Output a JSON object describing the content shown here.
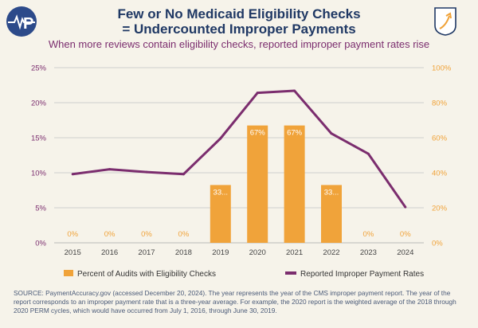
{
  "header": {
    "title_line1": "Few or No Medicaid Eligibility Checks",
    "title_line2": "= Undercounted Improper Payments",
    "subtitle": "When more reviews contain eligibility checks, reported improper payment rates rise"
  },
  "footer": {
    "source": "SOURCE: PaymentAccuracy.gov (accessed December 20, 2024). The year represents the year of the CMS improper payment report. The year of the report corresponds to an improper payment rate that is a three-year average. For example, the 2020 report is the weighted average of the 2018 through 2020 PERM cycles, which would have occurred from July 1, 2016, through June 30, 2019."
  },
  "colors": {
    "title": "#1f3864",
    "subtitle": "#7b2d6e",
    "bar": "#f0a33a",
    "line": "#7b2d6e",
    "left_axis": "#7b2d6e",
    "right_axis": "#f0a33a",
    "grid": "#cfcfcf"
  },
  "chart_data": {
    "type": "bar+line",
    "categories": [
      "2015",
      "2016",
      "2017",
      "2018",
      "2019",
      "2020",
      "2021",
      "2022",
      "2023",
      "2024"
    ],
    "series": [
      {
        "name": "Percent of Audits with Eligibility Checks",
        "type": "bar",
        "axis": "right",
        "values": [
          0,
          0,
          0,
          0,
          33,
          67,
          67,
          33,
          0,
          0
        ],
        "labels": [
          "0%",
          "0%",
          "0%",
          "0%",
          "33...",
          "67%",
          "67%",
          "33...",
          "0%",
          "0%"
        ]
      },
      {
        "name": "Reported Improper Payment Rates",
        "type": "line",
        "axis": "left",
        "values": [
          9.8,
          10.5,
          10.1,
          9.8,
          14.9,
          21.4,
          21.7,
          15.6,
          12.7,
          5.1
        ]
      }
    ],
    "left_axis": {
      "ticks": [
        "0%",
        "5%",
        "10%",
        "15%",
        "20%",
        "25%"
      ],
      "range": [
        0,
        25
      ]
    },
    "right_axis": {
      "ticks": [
        "0%",
        "20%",
        "40%",
        "60%",
        "80%",
        "100%"
      ],
      "range": [
        0,
        100
      ]
    },
    "grid": true,
    "legend": "bottom"
  }
}
